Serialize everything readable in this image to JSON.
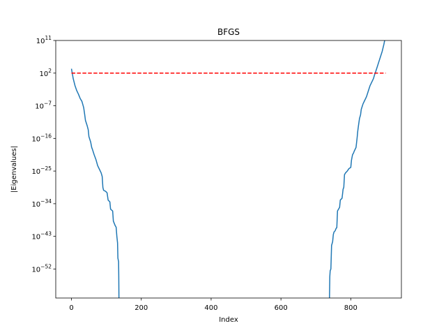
{
  "chart_data": {
    "type": "line",
    "title": "BFGS",
    "xlabel": "Index",
    "ylabel": "|Eigenvalues|",
    "xlim": [
      -45,
      945
    ],
    "ylim_log10": [
      -60,
      11
    ],
    "yscale": "log",
    "grid": false,
    "x_ticks": [
      0,
      200,
      400,
      600,
      800
    ],
    "x_tick_labels": [
      "0",
      "200",
      "400",
      "600",
      "800"
    ],
    "y_ticks_log10": [
      11,
      2,
      -7,
      -16,
      -25,
      -34,
      -43,
      -52
    ],
    "y_tick_labels": [
      {
        "base": "10",
        "exp": "11"
      },
      {
        "base": "10",
        "exp": "2"
      },
      {
        "base": "10",
        "exp": "−7"
      },
      {
        "base": "10",
        "exp": "−16"
      },
      {
        "base": "10",
        "exp": "−25"
      },
      {
        "base": "10",
        "exp": "−34"
      },
      {
        "base": "10",
        "exp": "−43"
      },
      {
        "base": "10",
        "exp": "−52"
      }
    ],
    "series": [
      {
        "color": "#1f77b4",
        "style": "solid",
        "segments": [
          [
            [
              0,
              3.2
            ],
            [
              5,
              0.5
            ],
            [
              10,
              -1.4
            ],
            [
              15,
              -2.8
            ],
            [
              20,
              -3.8
            ],
            [
              25,
              -5.0
            ],
            [
              30,
              -5.8
            ],
            [
              35,
              -7.5
            ],
            [
              38,
              -9.5
            ],
            [
              40,
              -11.0
            ],
            [
              45,
              -12.5
            ],
            [
              48,
              -13.6
            ],
            [
              50,
              -15.5
            ],
            [
              55,
              -17.0
            ],
            [
              58,
              -18.5
            ],
            [
              60,
              -19.0
            ],
            [
              65,
              -20.5
            ],
            [
              70,
              -21.8
            ],
            [
              75,
              -23.5
            ],
            [
              80,
              -24.5
            ],
            [
              85,
              -25.5
            ],
            [
              88,
              -26.5
            ],
            [
              90,
              -29.5
            ],
            [
              92,
              -30.3
            ],
            [
              98,
              -30.6
            ],
            [
              102,
              -31.0
            ],
            [
              105,
              -33.0
            ],
            [
              110,
              -33.5
            ],
            [
              112,
              -35.5
            ],
            [
              118,
              -36.0
            ],
            [
              120,
              -38.8
            ],
            [
              125,
              -40.0
            ],
            [
              128,
              -40.5
            ],
            [
              130,
              -43.0
            ],
            [
              132,
              -44.8
            ],
            [
              133,
              -49.0
            ],
            [
              135,
              -50.0
            ],
            [
              135.5,
              -54.0
            ],
            [
              136,
              -60.0
            ]
          ],
          [
            [
              739,
              -60.0
            ],
            [
              740,
              -54.0
            ],
            [
              741,
              -52.5
            ],
            [
              743,
              -52.0
            ],
            [
              745,
              -45.5
            ],
            [
              748,
              -44.5
            ],
            [
              750,
              -42.5
            ],
            [
              752,
              -41.8
            ],
            [
              755,
              -41.5
            ],
            [
              758,
              -40.8
            ],
            [
              760,
              -40.6
            ],
            [
              762,
              -36.0
            ],
            [
              765,
              -35.5
            ],
            [
              768,
              -35.0
            ],
            [
              770,
              -33.0
            ],
            [
              775,
              -32.5
            ],
            [
              778,
              -30.0
            ],
            [
              780,
              -29.5
            ],
            [
              782,
              -26.0
            ],
            [
              785,
              -25.5
            ],
            [
              790,
              -25.0
            ],
            [
              795,
              -24.3
            ],
            [
              800,
              -24.0
            ],
            [
              802,
              -22.0
            ],
            [
              805,
              -20.5
            ],
            [
              808,
              -20.0
            ],
            [
              810,
              -19.5
            ],
            [
              815,
              -18.5
            ],
            [
              818,
              -16.0
            ],
            [
              820,
              -14.0
            ],
            [
              822,
              -12.5
            ],
            [
              825,
              -10.5
            ],
            [
              828,
              -9.5
            ],
            [
              830,
              -8.0
            ],
            [
              835,
              -6.5
            ],
            [
              840,
              -5.5
            ],
            [
              845,
              -4.5
            ],
            [
              850,
              -3.0
            ],
            [
              855,
              -1.5
            ],
            [
              860,
              -0.5
            ],
            [
              865,
              0.5
            ],
            [
              868,
              1.5
            ],
            [
              870,
              2.0
            ],
            [
              875,
              3.5
            ],
            [
              880,
              5.0
            ],
            [
              885,
              6.5
            ],
            [
              890,
              8.0
            ],
            [
              895,
              10.0
            ],
            [
              899,
              12.0
            ]
          ]
        ]
      },
      {
        "color": "#ff0000",
        "style": "dashed",
        "segments": [
          [
            [
              0,
              2.0
            ],
            [
              900,
              2.0
            ]
          ]
        ]
      }
    ]
  }
}
